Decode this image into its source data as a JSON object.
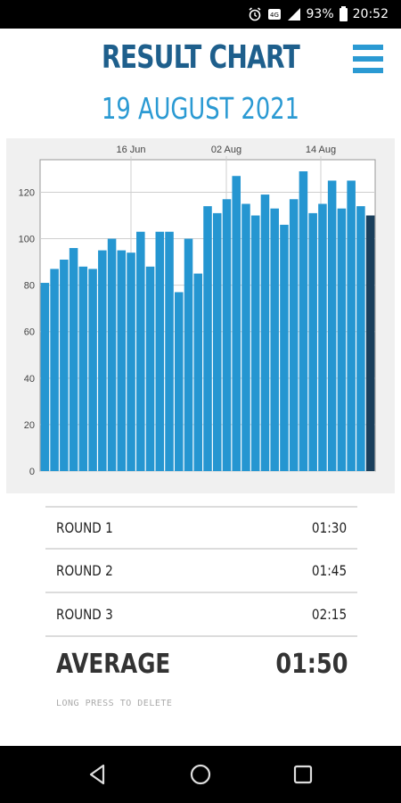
{
  "status_bar": {
    "battery": "93%",
    "time": "20:52",
    "icons": [
      "alarm-icon",
      "volte-icon",
      "signal-icon",
      "battery-icon"
    ]
  },
  "header": {
    "title": "RESULT CHART",
    "date": "19 AUGUST 2021"
  },
  "menu": {
    "icon": "hamburger-menu-icon"
  },
  "chart_data": {
    "type": "bar",
    "x_tick_labels": [
      "16 Jun",
      "02 Aug",
      "14 Aug"
    ],
    "y_ticks": [
      0,
      20,
      40,
      60,
      80,
      100,
      120
    ],
    "ylim": [
      0,
      134
    ],
    "values": [
      81,
      87,
      91,
      96,
      88,
      87,
      95,
      100,
      95,
      94,
      103,
      88,
      103,
      103,
      77,
      100,
      85,
      114,
      111,
      117,
      127,
      115,
      110,
      119,
      113,
      106,
      117,
      129,
      111,
      115,
      125,
      113,
      125,
      114,
      110
    ],
    "highlight_index": 34,
    "colors": {
      "bar": "#2596d1",
      "highlight": "#1a3f5c",
      "grid": "#cfcfcf",
      "plot_bg": "#ffffff",
      "panel_bg": "#f0f0f0"
    },
    "grid": true
  },
  "rounds": [
    {
      "label": "ROUND  1",
      "value": "01:30"
    },
    {
      "label": "ROUND  2",
      "value": "01:45"
    },
    {
      "label": "ROUND  3",
      "value": "02:15"
    }
  ],
  "average": {
    "label": "AVERAGE",
    "value": "01:50"
  },
  "hint": "LONG PRESS TO DELETE",
  "nav": {
    "back": "back-icon",
    "home": "home-icon",
    "recents": "recents-icon"
  }
}
